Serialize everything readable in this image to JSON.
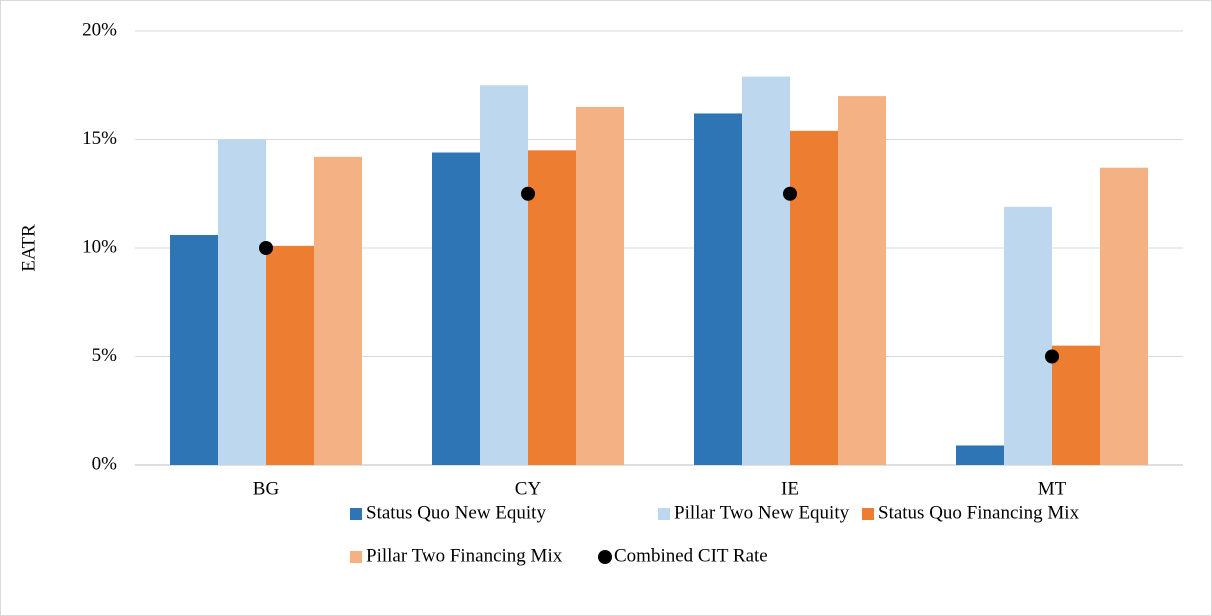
{
  "chart_data": {
    "type": "bar",
    "y_label": "EATR",
    "categories": [
      "BG",
      "CY",
      "IE",
      "MT"
    ],
    "series": [
      {
        "name": "Status Quo New Equity",
        "color": "#2e75b6",
        "values": [
          10.6,
          14.4,
          16.2,
          0.9
        ]
      },
      {
        "name": "Pillar Two New Equity",
        "color": "#bdd7ee",
        "values": [
          15.0,
          17.5,
          17.9,
          11.9
        ]
      },
      {
        "name": "Status Quo Financing Mix",
        "color": "#ed7d31",
        "values": [
          10.1,
          14.5,
          15.4,
          5.5
        ]
      },
      {
        "name": "Pillar Two Financing Mix",
        "color": "#f4b183",
        "values": [
          14.2,
          16.5,
          17.0,
          13.7
        ]
      },
      {
        "name": "Combined CIT Rate",
        "color": "#000000",
        "type": "scatter",
        "values": [
          10,
          12.5,
          12.5,
          5
        ]
      }
    ],
    "ylim": [
      0,
      20
    ],
    "yticks": [
      {
        "value": 0,
        "label": "0%"
      },
      {
        "value": 5,
        "label": "5%"
      },
      {
        "value": 10,
        "label": "10%"
      },
      {
        "value": 15,
        "label": "15%"
      },
      {
        "value": 20,
        "label": "20%"
      }
    ],
    "grid": true,
    "legend": "bottom"
  }
}
